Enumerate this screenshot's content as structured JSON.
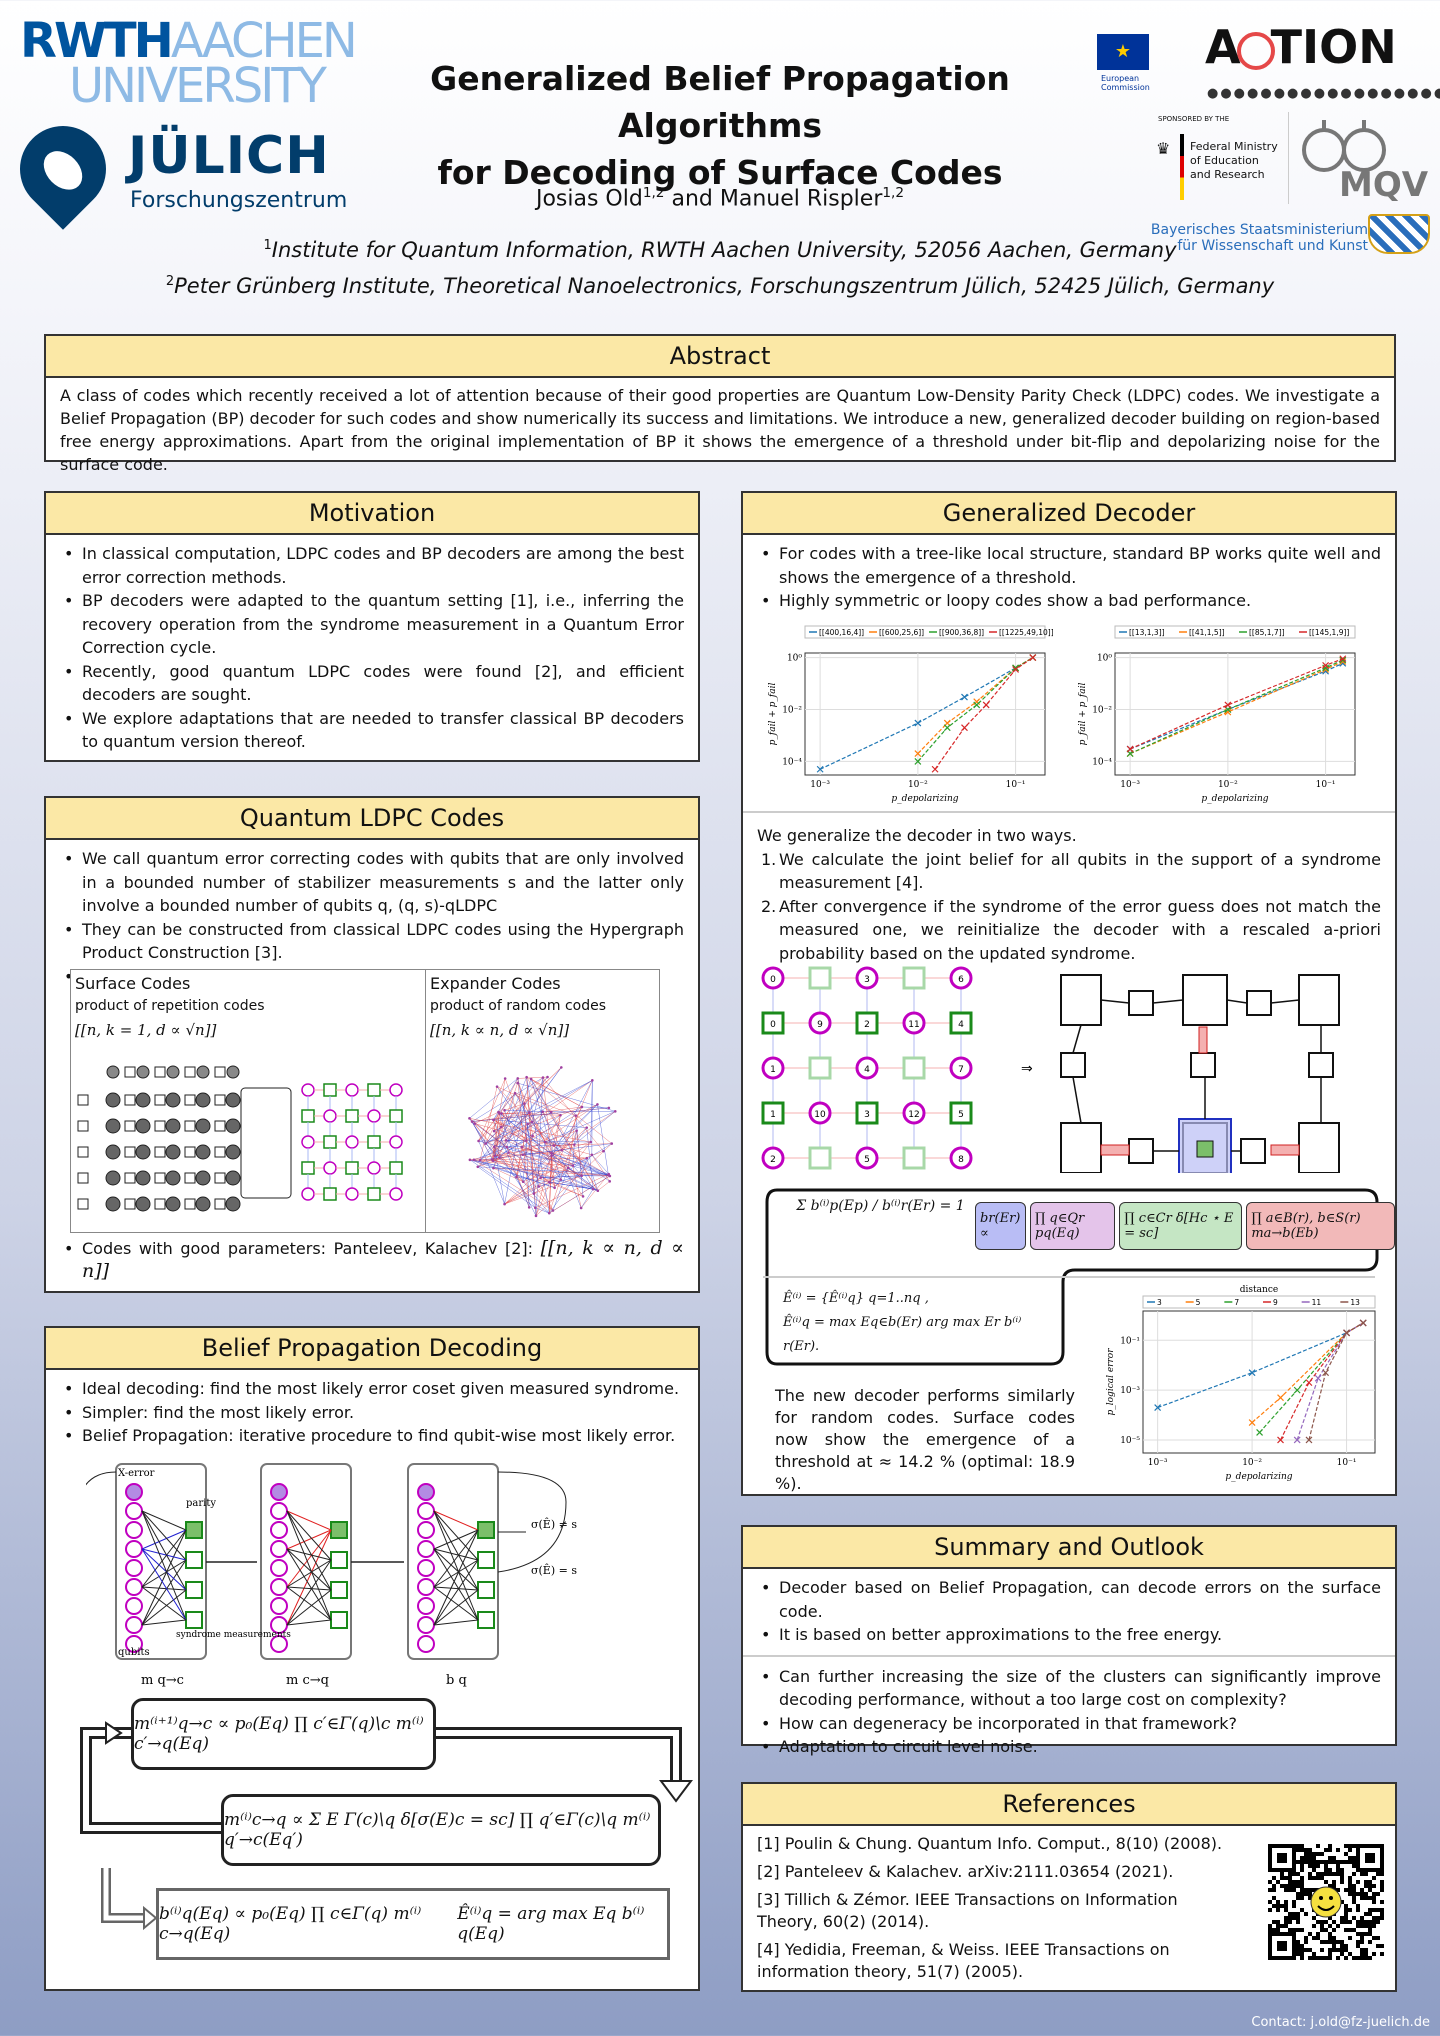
{
  "header": {
    "rwth_line1a": "RWTH",
    "rwth_line1b": "AACHEN",
    "rwth_line2": "UNIVERSITY",
    "julich_name": "JÜLICH",
    "julich_sub": "Forschungszentrum",
    "title_line1": "Generalized Belief Propagation Algorithms",
    "title_line2": "for Decoding of Surface Codes",
    "author1": "Josias Old",
    "author1_sup": "1,2",
    "author_and": " and Manuel Rispler",
    "author2_sup": "1,2",
    "aff1_sup": "1",
    "aff1": "Institute for Quantum Information, RWTH Aachen University, 52056 Aachen, Germany",
    "aff2_sup": "2",
    "aff2": "Peter Grünberg Institute, Theoretical Nanoelectronics, Forschungszentrum Jülich, 52425 Jülich, Germany",
    "eu_label": "European Commission",
    "action_a": "A",
    "action_rest": "TION",
    "bmbf_sponsored": "SPONSORED BY THE",
    "bmbf_name": "Federal Ministry of Education and Research",
    "mqv": "MQV",
    "bavaria": "Bayerisches Staatsministerium für Wissenschaft und Kunst"
  },
  "abstract": {
    "title": "Abstract",
    "text": "A class of codes which recently received a lot of attention because of their good properties are Quantum Low-Density Parity Check (LDPC) codes. We investigate a Belief Propagation (BP) decoder for such codes and show numerically its success and limitations. We introduce a new, generalized decoder building on region-based free energy approximations. Apart from the original implementation of BP it shows the emergence of a threshold under bit-flip and depolarizing noise for the surface code."
  },
  "motivation": {
    "title": "Motivation",
    "items": [
      "In classical computation, LDPC codes and BP decoders are among the best error correction methods.",
      "BP decoders were adapted to the quantum setting [1], i.e., inferring the recovery operation from the syndrome measurement in a Quantum Error Correction cycle.",
      "Recently, good quantum LDPC codes were found [2], and efficient decoders are sought.",
      "We explore adaptations that are needed to transfer classical BP decoders to quantum version thereof."
    ]
  },
  "qldpc": {
    "title": "Quantum LDPC Codes",
    "item1": "We call quantum error correcting codes with qubits that are only involved in a bounded number of stabilizer measurements s and the latter only involve a bounded number of qubits q, (q, s)-qLDPC",
    "item2": "They can be constructed from classical LDPC codes using the Hypergraph Product Construction [3].",
    "surface_title": "Surface Codes",
    "surface_sub": "product of repetition codes",
    "surface_param": "[[n, k = 1, d ∝ √n]]",
    "expander_title": "Expander Codes",
    "expander_sub": "product of random codes",
    "expander_param": "[[n, k ∝ n, d ∝ √n]]",
    "item3": "Codes with good parameters: Panteleev, Kalachev [2]:",
    "item3_param": "[[n, k ∝ n, d ∝ n]]"
  },
  "bp": {
    "title": "Belief Propagation Decoding",
    "items": [
      "Ideal decoding: find the most likely error coset given measured syndrome.",
      "Simpler: find the most likely error.",
      "Belief Propagation: iterative procedure to find qubit-wise most likely error."
    ],
    "fig_xerror": "X-error",
    "fig_parity": "parity",
    "fig_syndrome": "syndrome measurements",
    "fig_qubits": "qubits",
    "fig_m1": "m q→c",
    "fig_m2": "m c→q",
    "fig_m3": "b q",
    "fig_neq": "σ(Ê) ≠ s",
    "fig_eq": "σ(Ê) = s",
    "eq1": "m⁽ⁱ⁺¹⁾q→c ∝ p₀(Eq) ∏ c′∈Γ(q)\\c m⁽ⁱ⁾c′→q(Eq)",
    "eq2": "m⁽ⁱ⁾c→q ∝ Σ E Γ(c)\\q δ[σ(E)c = sc] ∏ q′∈Γ(c)\\q m⁽ⁱ⁾q′→c(Eq′)",
    "eq3a": "b⁽ⁱ⁾q(Eq) ∝ p₀(Eq) ∏ c∈Γ(q) m⁽ⁱ⁾c→q(Eq)",
    "eq3b": "Ê⁽ⁱ⁾q = arg max Eq b⁽ⁱ⁾q(Eq)"
  },
  "gd": {
    "title": "Generalized Decoder",
    "items": [
      "For codes with a tree-like local structure, standard BP works quite well and shows the emergence of a threshold.",
      "Highly symmetric or loopy codes show a bad performance."
    ],
    "generalize": "We generalize the decoder in two ways.",
    "steps": [
      "We calculate the joint belief for all qubits in the support of a syndrome measurement [4].",
      "After convergence if the syndrome of the error guess does not match the measured one, we reinitialize the decoder with a rescaled a-priori probability based on the updated syndrome."
    ],
    "eq_a": "Σ b⁽ⁱ⁾p(Ep) / b⁽ⁱ⁾r(Er) = 1",
    "eq_b1": "br(Er) ∝",
    "eq_b2": "∏ q∈Qr pq(Eq)",
    "eq_b3": "∏ c∈Cr δ[Hc ⋆ E = sc]",
    "eq_b4": "∏ a∈B(r), b∈S(r) ma→b(Eb)",
    "eq_c1": "Ê⁽ⁱ⁾ = {Ê⁽ⁱ⁾q} q=1..nq ,",
    "eq_c2": "Ê⁽ⁱ⁾q = max Eq∈b(Er) arg max Er b⁽ⁱ⁾r(Er).",
    "result": "The new decoder performs similarly for random codes. Surface codes now show the emergence of a threshold at ≈ 14.2 % (optimal: 18.9 %).",
    "arrow": "⇒"
  },
  "summary": {
    "title": "Summary and Outlook",
    "items1": [
      "Decoder based on Belief Propagation, can decode errors on the surface code.",
      "It is based on better approximations to the free energy."
    ],
    "items2": [
      "Can further increasing the size of the clusters can significantly improve decoding performance, without a too large cost on complexity?",
      "How can degeneracy be incorporated in that framework?",
      "Adaptation to circuit level noise."
    ]
  },
  "refs": {
    "title": "References",
    "items": [
      "[1] Poulin & Chung. Quantum Info. Comput., 8(10) (2008).",
      "[2] Panteleev & Kalachev.  arXiv:2111.03654 (2021).",
      "[3] Tillich & Zémor. IEEE Transactions on Information Theory, 60(2) (2014).",
      "[4] Yedidia, Freeman, & Weiss. IEEE Transactions on information theory, 51(7) (2005)."
    ]
  },
  "contact": "Contact: j.old@fz-juelich.de",
  "chart_data": [
    {
      "type": "line",
      "scale": "log-log",
      "xlabel": "p_depolarizing",
      "ylabel": "p_fail + p_fail",
      "xlim": [
        0.0007,
        0.2
      ],
      "ylim": [
        3e-05,
        1.5
      ],
      "xticks": [
        "10⁻³",
        "10⁻²",
        "10⁻¹"
      ],
      "yticks": [
        "10⁰",
        "10⁻²",
        "10⁻⁴"
      ],
      "series": [
        {
          "name": "[[400,16,4]]",
          "color": "#1f77b4",
          "x": [
            0.001,
            0.01,
            0.03,
            0.1,
            0.15
          ],
          "y": [
            5e-05,
            0.003,
            0.03,
            0.4,
            1.0
          ]
        },
        {
          "name": "[[600,25,6]]",
          "color": "#ff7f0e",
          "x": [
            0.01,
            0.02,
            0.04,
            0.1,
            0.15
          ],
          "y": [
            0.0002,
            0.003,
            0.02,
            0.4,
            1.0
          ]
        },
        {
          "name": "[[900,36,8]]",
          "color": "#2ca02c",
          "x": [
            0.01,
            0.02,
            0.04,
            0.1,
            0.15
          ],
          "y": [
            0.0001,
            0.002,
            0.015,
            0.4,
            1.0
          ]
        },
        {
          "name": "[[1225,49,10]]",
          "color": "#d62728",
          "x": [
            0.015,
            0.03,
            0.05,
            0.1,
            0.15
          ],
          "y": [
            5e-05,
            0.002,
            0.015,
            0.35,
            1.0
          ]
        }
      ]
    },
    {
      "type": "line",
      "scale": "log-log",
      "xlabel": "p_depolarizing",
      "ylabel": "p_fail + p_fail",
      "xlim": [
        0.0007,
        0.2
      ],
      "ylim": [
        3e-05,
        1.5
      ],
      "xticks": [
        "10⁻³",
        "10⁻²",
        "10⁻¹"
      ],
      "yticks": [
        "10⁰",
        "10⁻²",
        "10⁻⁴"
      ],
      "series": [
        {
          "name": "[[13,1,3]]",
          "color": "#1f77b4",
          "x": [
            0.001,
            0.01,
            0.1,
            0.15
          ],
          "y": [
            0.0003,
            0.01,
            0.3,
            0.6
          ]
        },
        {
          "name": "[[41,1,5]]",
          "color": "#ff7f0e",
          "x": [
            0.001,
            0.01,
            0.1,
            0.15
          ],
          "y": [
            0.0002,
            0.008,
            0.35,
            0.7
          ]
        },
        {
          "name": "[[85,1,7]]",
          "color": "#2ca02c",
          "x": [
            0.001,
            0.01,
            0.1,
            0.15
          ],
          "y": [
            0.0002,
            0.01,
            0.4,
            0.8
          ]
        },
        {
          "name": "[[145,1,9]]",
          "color": "#d62728",
          "x": [
            0.001,
            0.01,
            0.1,
            0.15
          ],
          "y": [
            0.0003,
            0.015,
            0.5,
            0.9
          ]
        }
      ]
    },
    {
      "type": "line",
      "scale": "log-log",
      "legend_title": "distance",
      "xlabel": "p_depolarizing",
      "ylabel": "p_logical error",
      "xlim": [
        0.0007,
        0.2
      ],
      "ylim": [
        3e-06,
        1.5
      ],
      "xticks": [
        "10⁻³",
        "10⁻²",
        "10⁻¹"
      ],
      "yticks": [
        "10⁻¹",
        "10⁻³",
        "10⁻⁵"
      ],
      "series": [
        {
          "name": "3",
          "color": "#1f77b4",
          "x": [
            0.001,
            0.01,
            0.1,
            0.15
          ],
          "y": [
            0.0002,
            0.005,
            0.2,
            0.5
          ]
        },
        {
          "name": "5",
          "color": "#ff7f0e",
          "x": [
            0.01,
            0.02,
            0.1,
            0.15
          ],
          "y": [
            5e-05,
            0.0005,
            0.2,
            0.5
          ]
        },
        {
          "name": "7",
          "color": "#2ca02c",
          "x": [
            0.012,
            0.03,
            0.1,
            0.15
          ],
          "y": [
            2e-05,
            0.001,
            0.2,
            0.5
          ]
        },
        {
          "name": "9",
          "color": "#d62728",
          "x": [
            0.02,
            0.04,
            0.1,
            0.15
          ],
          "y": [
            1e-05,
            0.002,
            0.2,
            0.5
          ]
        },
        {
          "name": "11",
          "color": "#9467bd",
          "x": [
            0.03,
            0.05,
            0.1,
            0.15
          ],
          "y": [
            1e-05,
            0.003,
            0.2,
            0.5
          ]
        },
        {
          "name": "13",
          "color": "#8c564b",
          "x": [
            0.04,
            0.06,
            0.1,
            0.15
          ],
          "y": [
            1e-05,
            0.005,
            0.2,
            0.5
          ]
        }
      ]
    }
  ]
}
